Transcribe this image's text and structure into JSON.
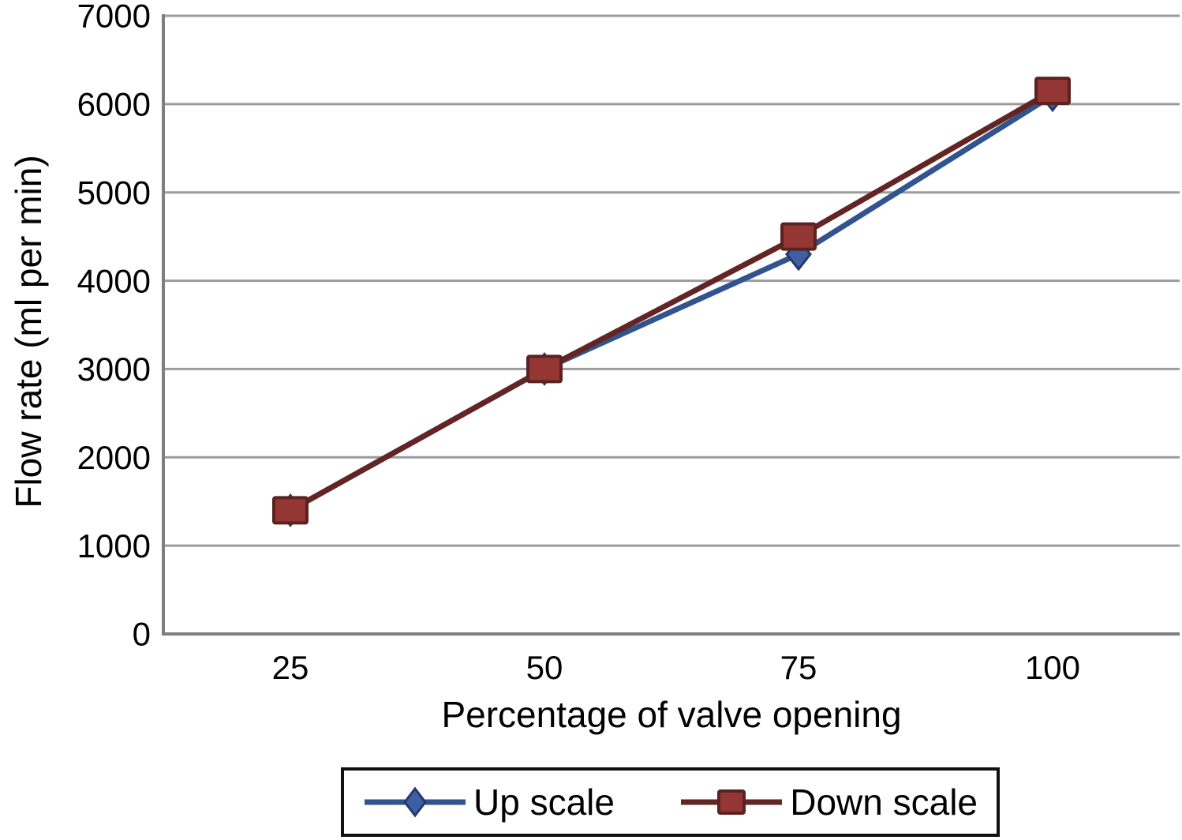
{
  "chart_data": {
    "type": "line",
    "categories": [
      "25",
      "50",
      "75",
      "100"
    ],
    "series": [
      {
        "name": "Up scale",
        "marker": "diamond",
        "line_color": "#31538f",
        "marker_fill": "#3f5fa5",
        "marker_edge": "#24386b",
        "values": [
          1400,
          3000,
          4300,
          6100
        ]
      },
      {
        "name": "Down scale",
        "marker": "square",
        "line_color": "#632523",
        "marker_fill": "#943634",
        "marker_edge": "#5a2220",
        "values": [
          1400,
          3000,
          4500,
          6150
        ]
      }
    ],
    "title": "",
    "xlabel": "Percentage of valve opening",
    "ylabel": "Flow rate (ml per min)",
    "ylim": [
      0,
      7000
    ],
    "y_ticks": [
      0,
      1000,
      2000,
      3000,
      4000,
      5000,
      6000,
      7000
    ],
    "grid": true,
    "legend_position": "bottom"
  },
  "styles": {
    "grid_color": "#9b9b9b",
    "axis_color": "#7f7f7f",
    "text_color": "#000000",
    "legend_border": "#111111"
  }
}
